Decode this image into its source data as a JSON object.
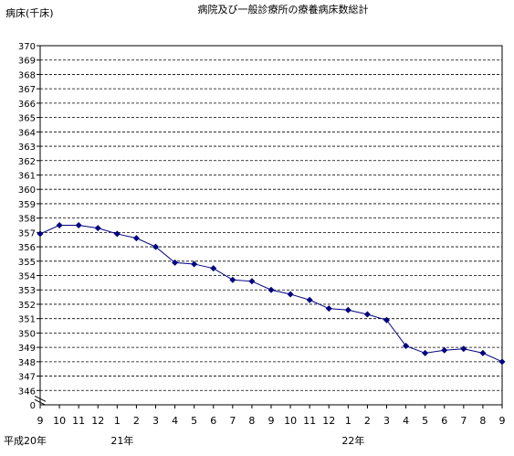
{
  "chart_data": {
    "type": "line",
    "title": "病院及び一般診療所の療養病床数総計",
    "ylabel": "病床(千床)",
    "ylim": [
      345,
      370
    ],
    "y_break_zero_label": "0",
    "yticks": [
      "370",
      "369",
      "368",
      "367",
      "366",
      "365",
      "364",
      "363",
      "362",
      "361",
      "360",
      "359",
      "358",
      "357",
      "356",
      "355",
      "354",
      "353",
      "352",
      "351",
      "350",
      "349",
      "348",
      "347",
      "346"
    ],
    "x": [
      "9",
      "10",
      "11",
      "12",
      "1",
      "2",
      "3",
      "4",
      "5",
      "6",
      "7",
      "8",
      "9",
      "10",
      "11",
      "12",
      "1",
      "2",
      "3",
      "4",
      "5",
      "6",
      "7",
      "8",
      "9"
    ],
    "year_labels": [
      {
        "text": "平成20年",
        "index": 0
      },
      {
        "text": "21年",
        "index": 4
      },
      {
        "text": "22年",
        "index": 16
      }
    ],
    "series": [
      {
        "values": [
          356.9,
          357.5,
          357.5,
          357.3,
          356.9,
          356.6,
          356.0,
          354.9,
          354.8,
          354.5,
          353.7,
          353.6,
          353.0,
          352.7,
          352.3,
          351.7,
          351.6,
          351.3,
          350.9,
          349.1,
          348.6,
          348.8,
          348.9,
          348.6,
          348.0
        ],
        "color": "#000080"
      }
    ],
    "grid": "horizontal dashed",
    "legend": "none"
  }
}
